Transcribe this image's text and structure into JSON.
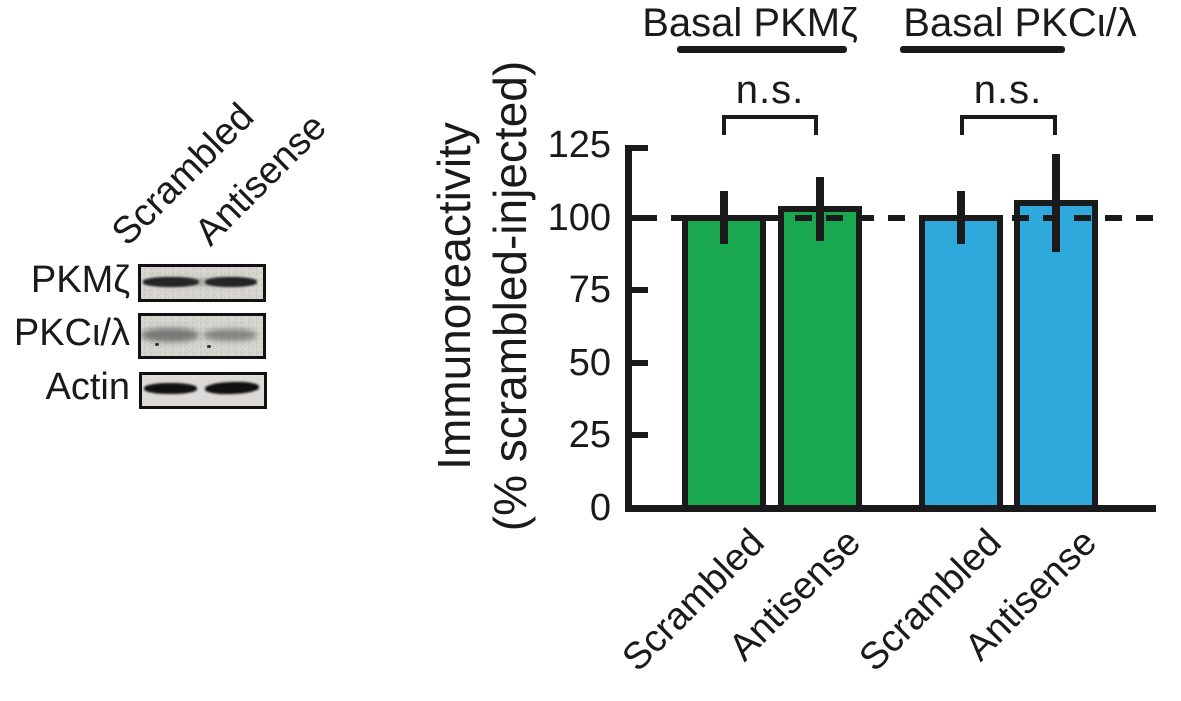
{
  "blot_panel": {
    "col_labels": [
      "Scrambled",
      "Antisense"
    ],
    "rows": [
      {
        "label": "PKMζ"
      },
      {
        "label": "PKCι/λ"
      },
      {
        "label": "Actin"
      }
    ]
  },
  "chart_data": {
    "type": "bar",
    "ylabel_line1": "Immunoreactivity",
    "ylabel_line2": "(% scrambled-injected)",
    "ylim": [
      0,
      125
    ],
    "yticks": [
      0,
      25,
      50,
      75,
      100,
      125
    ],
    "reference_line": 100,
    "grid": false,
    "legend": false,
    "categories": [
      "Scrambled",
      "Antisense",
      "Scrambled",
      "Antisense"
    ],
    "groups": [
      {
        "label": "Basal PKMζ",
        "significance": "n.s.",
        "color": "#19a74f",
        "bars": [
          {
            "category": "Scrambled",
            "value": 101,
            "err_hi": 109,
            "err_lo": 91
          },
          {
            "category": "Antisense",
            "value": 104,
            "err_hi": 114,
            "err_lo": 92
          }
        ]
      },
      {
        "label": "Basal PKCι/λ",
        "significance": "n.s.",
        "color": "#2fa8dc",
        "bars": [
          {
            "category": "Scrambled",
            "value": 101,
            "err_hi": 109,
            "err_lo": 91
          },
          {
            "category": "Antisense",
            "value": 106,
            "err_hi": 122,
            "err_lo": 88
          }
        ]
      }
    ],
    "colors": {
      "pkmz_bars": "#19a74f",
      "pkci_bars": "#2fa8dc",
      "axis": "#1a1a1a"
    }
  }
}
